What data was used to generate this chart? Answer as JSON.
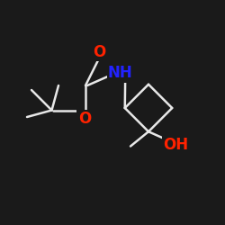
{
  "bg_color": "#1a1a1a",
  "bond_color": "#e8e8e8",
  "o_color": "#ff2200",
  "n_color": "#2222ff",
  "bond_width": 1.8,
  "font_size_label": 11,
  "fig_size": [
    2.5,
    2.5
  ],
  "dpi": 100,
  "xlim": [
    0,
    10
  ],
  "ylim": [
    0,
    10
  ]
}
